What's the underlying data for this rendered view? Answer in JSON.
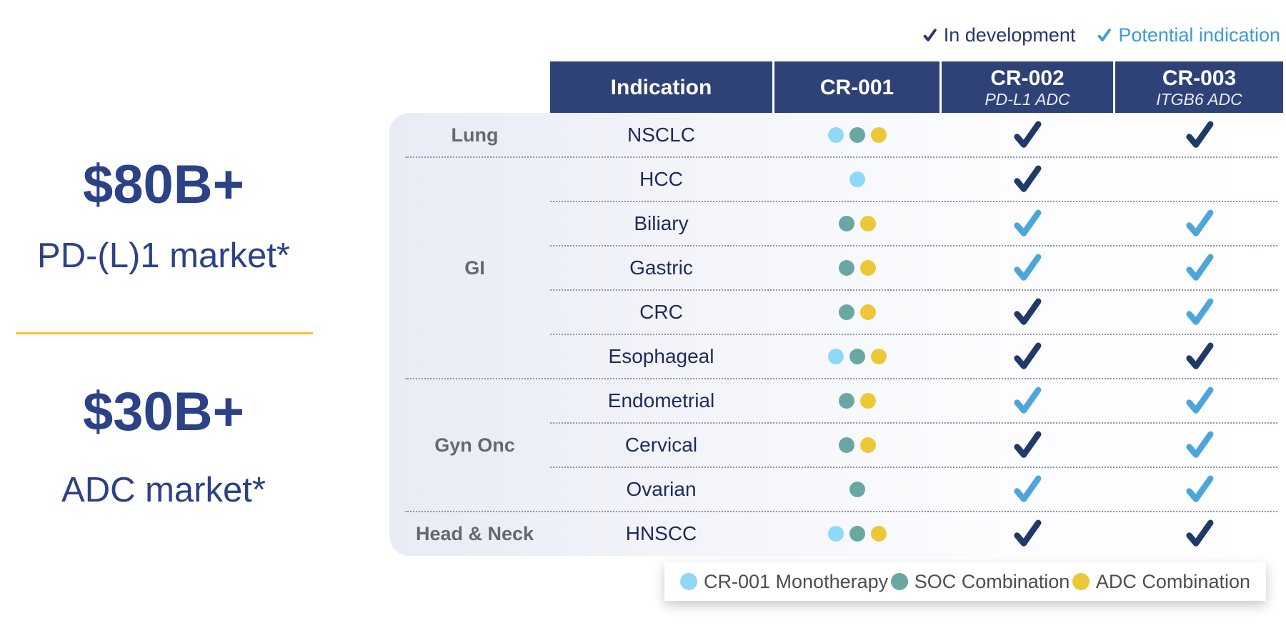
{
  "top_legend": {
    "in_development_label": "In development",
    "potential_indication_label": "Potential indication"
  },
  "market_stats": [
    {
      "value": "$80B+",
      "label": "PD-(L)1 market*"
    },
    {
      "value": "$30B+",
      "label": "ADC market*"
    }
  ],
  "table": {
    "header": {
      "indication": "Indication",
      "cr001_title": "CR-001",
      "cr002_title": "CR-002",
      "cr002_subtitle": "PD-L1 ADC",
      "cr003_title": "CR-003",
      "cr003_subtitle": "ITGB6 ADC"
    },
    "rows": [
      {
        "group": "Lung",
        "indication": "NSCLC",
        "cr001_dots": [
          "mono",
          "soc",
          "adc"
        ],
        "cr002": "in_development",
        "cr003": "in_development",
        "separator_after": "group"
      },
      {
        "group": "",
        "indication": "HCC",
        "cr001_dots": [
          "mono"
        ],
        "cr002": "in_development",
        "cr003": "none",
        "separator_after": "inner"
      },
      {
        "group": "",
        "indication": "Biliary",
        "cr001_dots": [
          "soc",
          "adc"
        ],
        "cr002": "potential_indication",
        "cr003": "potential_indication",
        "separator_after": "inner"
      },
      {
        "group": "GI",
        "indication": "Gastric",
        "cr001_dots": [
          "soc",
          "adc"
        ],
        "cr002": "potential_indication",
        "cr003": "potential_indication",
        "separator_after": "inner"
      },
      {
        "group": "",
        "indication": "CRC",
        "cr001_dots": [
          "soc",
          "adc"
        ],
        "cr002": "in_development",
        "cr003": "potential_indication",
        "separator_after": "inner"
      },
      {
        "group": "",
        "indication": "Esophageal",
        "cr001_dots": [
          "mono",
          "soc",
          "adc"
        ],
        "cr002": "in_development",
        "cr003": "in_development",
        "separator_after": "group"
      },
      {
        "group": "",
        "indication": "Endometrial",
        "cr001_dots": [
          "soc",
          "adc"
        ],
        "cr002": "potential_indication",
        "cr003": "potential_indication",
        "separator_after": "inner"
      },
      {
        "group": "Gyn Onc",
        "indication": "Cervical",
        "cr001_dots": [
          "soc",
          "adc"
        ],
        "cr002": "in_development",
        "cr003": "potential_indication",
        "separator_after": "inner"
      },
      {
        "group": "",
        "indication": "Ovarian",
        "cr001_dots": [
          "soc"
        ],
        "cr002": "potential_indication",
        "cr003": "potential_indication",
        "separator_after": "group"
      },
      {
        "group": "Head & Neck",
        "indication": "HNSCC",
        "cr001_dots": [
          "mono",
          "soc",
          "adc"
        ],
        "cr002": "in_development",
        "cr003": "in_development",
        "separator_after": "none"
      }
    ]
  },
  "bottom_legend": {
    "items": [
      {
        "key": "mono",
        "label": "CR-001 Monotherapy"
      },
      {
        "key": "soc",
        "label": "SOC Combination"
      },
      {
        "key": "adc",
        "label": "ADC Combination"
      }
    ]
  },
  "colors": {
    "header_navy": "#2E4277",
    "stat_navy": "#2C4287",
    "gold_divider": "#F5C52B",
    "dot_mono": "#8FD8F8",
    "dot_soc": "#69A8A2",
    "dot_adc": "#ECC838",
    "check_in_development": "#1F3968",
    "check_potential_indication": "#4CA6DA",
    "mini_check_dev": "#2A3A6E",
    "mini_check_pot": "#41A0D8"
  }
}
